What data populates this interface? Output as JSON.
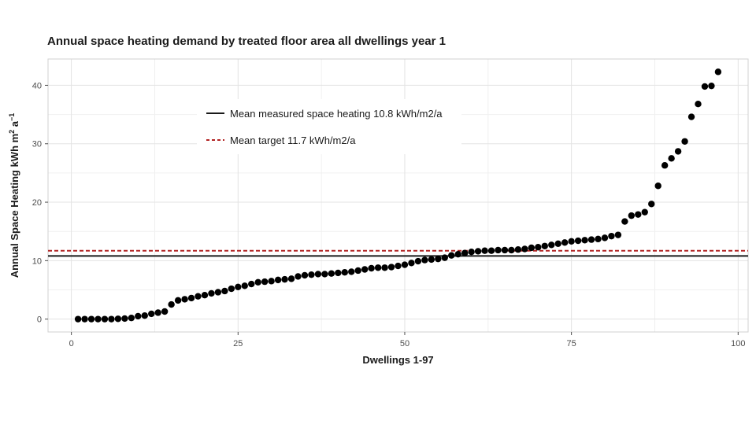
{
  "chart_data": {
    "type": "scatter",
    "title": "Annual space heating demand by treated floor area all dwellings year 1",
    "xlabel": "Dwellings 1-97",
    "ylabel": "Annual Space Heating kWh m² a⁻¹",
    "ylabel_main": "Annual Space Heating kWh m",
    "ylabel_sup1": "2",
    "ylabel_mid": " a",
    "ylabel_sup2": "−1",
    "xlim": [
      -3.5,
      101.5
    ],
    "ylim": [
      -2.2,
      44.5
    ],
    "x_ticks": [
      0,
      25,
      50,
      75,
      100
    ],
    "x_tick_labels": [
      "0",
      "25",
      "50",
      "75",
      "100"
    ],
    "y_ticks": [
      0,
      10,
      20,
      30,
      40
    ],
    "y_tick_labels": [
      "0",
      "10",
      "20",
      "30",
      "40"
    ],
    "grid": true,
    "legend_position": "top-left",
    "reference_lines": [
      {
        "name": "Mean measured space heating 10.8 kWh/m2/a",
        "value": 10.8,
        "style": "solid",
        "color": "#1a1a1a"
      },
      {
        "name": "Mean target 11.7 kWh/m2/a",
        "value": 11.7,
        "style": "dashed",
        "color": "#b22222"
      }
    ],
    "series": [
      {
        "name": "Dwellings",
        "color": "#000000",
        "x": [
          1,
          2,
          3,
          4,
          5,
          6,
          7,
          8,
          9,
          10,
          11,
          12,
          13,
          14,
          15,
          16,
          17,
          18,
          19,
          20,
          21,
          22,
          23,
          24,
          25,
          26,
          27,
          28,
          29,
          30,
          31,
          32,
          33,
          34,
          35,
          36,
          37,
          38,
          39,
          40,
          41,
          42,
          43,
          44,
          45,
          46,
          47,
          48,
          49,
          50,
          51,
          52,
          53,
          54,
          55,
          56,
          57,
          58,
          59,
          60,
          61,
          62,
          63,
          64,
          65,
          66,
          67,
          68,
          69,
          70,
          71,
          72,
          73,
          74,
          75,
          76,
          77,
          78,
          79,
          80,
          81,
          82,
          83,
          84,
          85,
          86,
          87,
          88,
          89,
          90,
          91,
          92,
          93,
          94,
          95,
          96,
          97
        ],
        "values": [
          0,
          0,
          0,
          0,
          0,
          0,
          0.05,
          0.1,
          0.2,
          0.5,
          0.6,
          0.9,
          1.1,
          1.3,
          2.5,
          3.2,
          3.4,
          3.6,
          3.9,
          4.1,
          4.4,
          4.6,
          4.8,
          5.2,
          5.5,
          5.7,
          6.0,
          6.3,
          6.4,
          6.5,
          6.7,
          6.8,
          6.9,
          7.3,
          7.5,
          7.6,
          7.7,
          7.7,
          7.8,
          7.9,
          8.0,
          8.1,
          8.3,
          8.5,
          8.7,
          8.8,
          8.8,
          8.9,
          9.1,
          9.3,
          9.6,
          9.9,
          10.1,
          10.2,
          10.3,
          10.5,
          10.9,
          11.1,
          11.3,
          11.5,
          11.6,
          11.7,
          11.7,
          11.8,
          11.8,
          11.8,
          11.9,
          12.0,
          12.2,
          12.3,
          12.5,
          12.7,
          12.9,
          13.1,
          13.3,
          13.4,
          13.5,
          13.6,
          13.7,
          13.9,
          14.2,
          14.4,
          16.7,
          17.7,
          17.9,
          18.3,
          19.7,
          22.8,
          26.3,
          27.5,
          28.7,
          30.4,
          34.6,
          36.8,
          39.8,
          39.9,
          42.3
        ]
      }
    ]
  }
}
